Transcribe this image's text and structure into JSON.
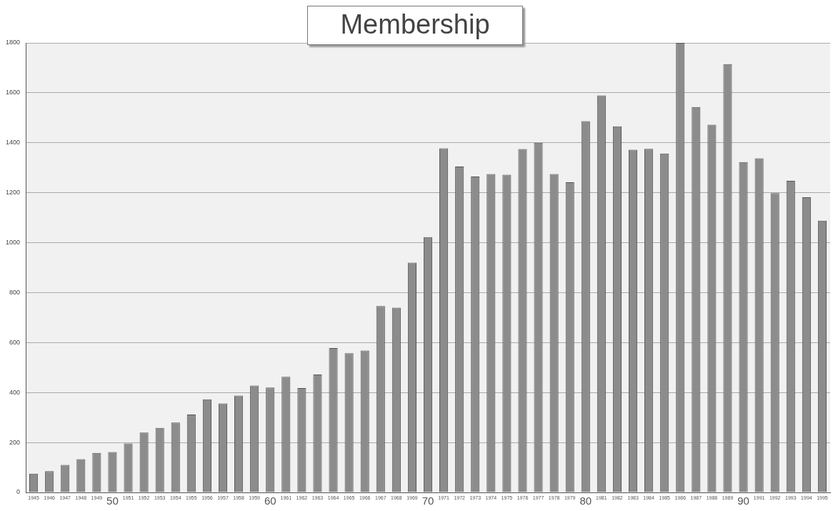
{
  "chart_data": {
    "type": "bar",
    "title": "Membership",
    "categories": [
      "1945",
      "1946",
      "1947",
      "1948",
      "1949",
      "50",
      "1951",
      "1952",
      "1953",
      "1954",
      "1955",
      "1956",
      "1957",
      "1958",
      "1959",
      "60",
      "1961",
      "1962",
      "1963",
      "1964",
      "1965",
      "1966",
      "1967",
      "1968",
      "1969",
      "70",
      "1971",
      "1972",
      "1973",
      "1974",
      "1975",
      "1976",
      "1977",
      "1978",
      "1979",
      "80",
      "1981",
      "1982",
      "1983",
      "1984",
      "1985",
      "1986",
      "1987",
      "1988",
      "1989",
      "90",
      "1991",
      "1992",
      "1993",
      "1994",
      "1995"
    ],
    "values": [
      75,
      85,
      110,
      133,
      158,
      162,
      196,
      240,
      258,
      280,
      312,
      373,
      356,
      388,
      428,
      420,
      463,
      418,
      472,
      578,
      557,
      568,
      746,
      740,
      920,
      1022,
      1378,
      1305,
      1265,
      1275,
      1272,
      1375,
      1400,
      1275,
      1242,
      1487,
      1590,
      1466,
      1372,
      1376,
      1357,
      1800,
      1543,
      1472,
      1715,
      1323,
      1338,
      1198,
      1248,
      1182,
      1088
    ],
    "color": "#8c8c8c",
    "ylim": [
      0,
      1800
    ],
    "yticks": [
      0,
      200,
      400,
      600,
      800,
      1000,
      1200,
      1400,
      1600,
      1800
    ],
    "grid": "y"
  }
}
